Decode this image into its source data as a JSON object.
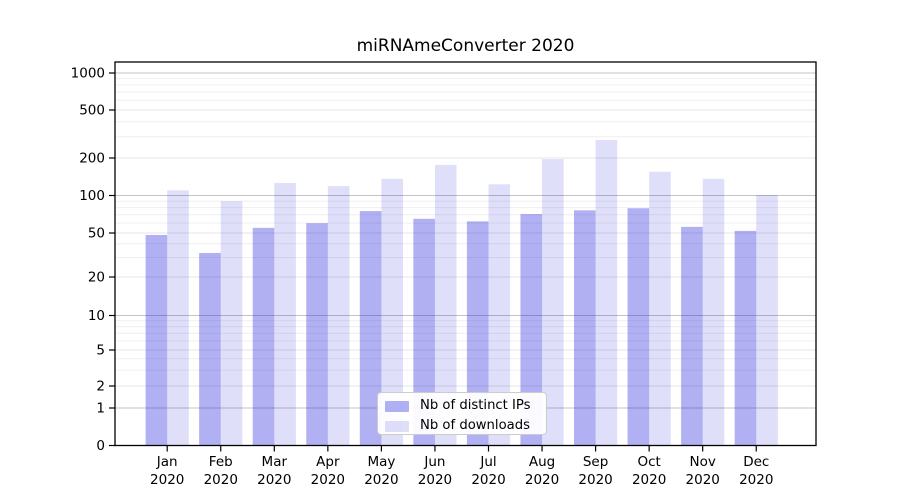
{
  "chart_data": {
    "type": "bar",
    "title": "miRNAmeConverter 2020",
    "categories": [
      "Jan",
      "Feb",
      "Mar",
      "Apr",
      "May",
      "Jun",
      "Jul",
      "Aug",
      "Sep",
      "Oct",
      "Nov",
      "Dec"
    ],
    "category_year": "2020",
    "series": [
      {
        "name": "Nb of distinct IPs",
        "color": "rgba(30,30,220,0.35)",
        "values": [
          48,
          33,
          55,
          60,
          75,
          65,
          62,
          71,
          76,
          79,
          56,
          52
        ]
      },
      {
        "name": "Nb of downloads",
        "color": "rgba(30,30,220,0.14)",
        "values": [
          110,
          90,
          126,
          119,
          136,
          176,
          123,
          196,
          282,
          155,
          136,
          101
        ]
      }
    ],
    "y_axis": {
      "scale": "symlog",
      "ticks": [
        0,
        1,
        2,
        5,
        10,
        20,
        50,
        100,
        200,
        500,
        1000
      ],
      "range": [
        0,
        1000
      ]
    },
    "x_axis": {
      "tick_labels_line1": [
        "Jan",
        "Feb",
        "Mar",
        "Apr",
        "May",
        "Jun",
        "Jul",
        "Aug",
        "Sep",
        "Oct",
        "Nov",
        "Dec"
      ],
      "tick_labels_line2": "2020"
    },
    "grid": "horizontal major and minor",
    "legend_position": "inside bottom center"
  }
}
